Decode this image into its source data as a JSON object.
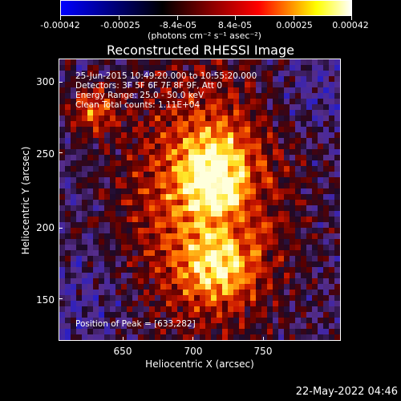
{
  "colorbar": {
    "tick_labels": [
      "-0.00042",
      "-0.00025",
      "-8.4e-05",
      "8.4e-05",
      "0.00025",
      "0.00042"
    ],
    "units": "(photons cm⁻² s⁻¹ asec⁻²)",
    "colors": [
      "#0000ff",
      "#000000",
      "#8b0000",
      "#ff0000",
      "#ffff00",
      "#ffffff"
    ]
  },
  "image": {
    "title": "Reconstructed RHESSI Image",
    "overlay_lines": [
      "25-Jun-2015 10:49:20.000 to 10:55:20.000",
      "Detectors: 3F 5F 6F 7F 8F 9F, Att 0",
      "Energy Range: 25.0 - 50.0 keV",
      "Clean     Total counts: 1.11E+04"
    ],
    "peak_text": "Position of Peak = [633,282]"
  },
  "axes": {
    "x_label": "Heliocentric X (arcsec)",
    "y_label": "Heliocentric Y (arcsec)",
    "x_ticks": [
      "650",
      "700",
      "750"
    ],
    "y_ticks": [
      "300",
      "250",
      "200",
      "150"
    ]
  },
  "timestamp": "22-May-2022 04:46"
}
